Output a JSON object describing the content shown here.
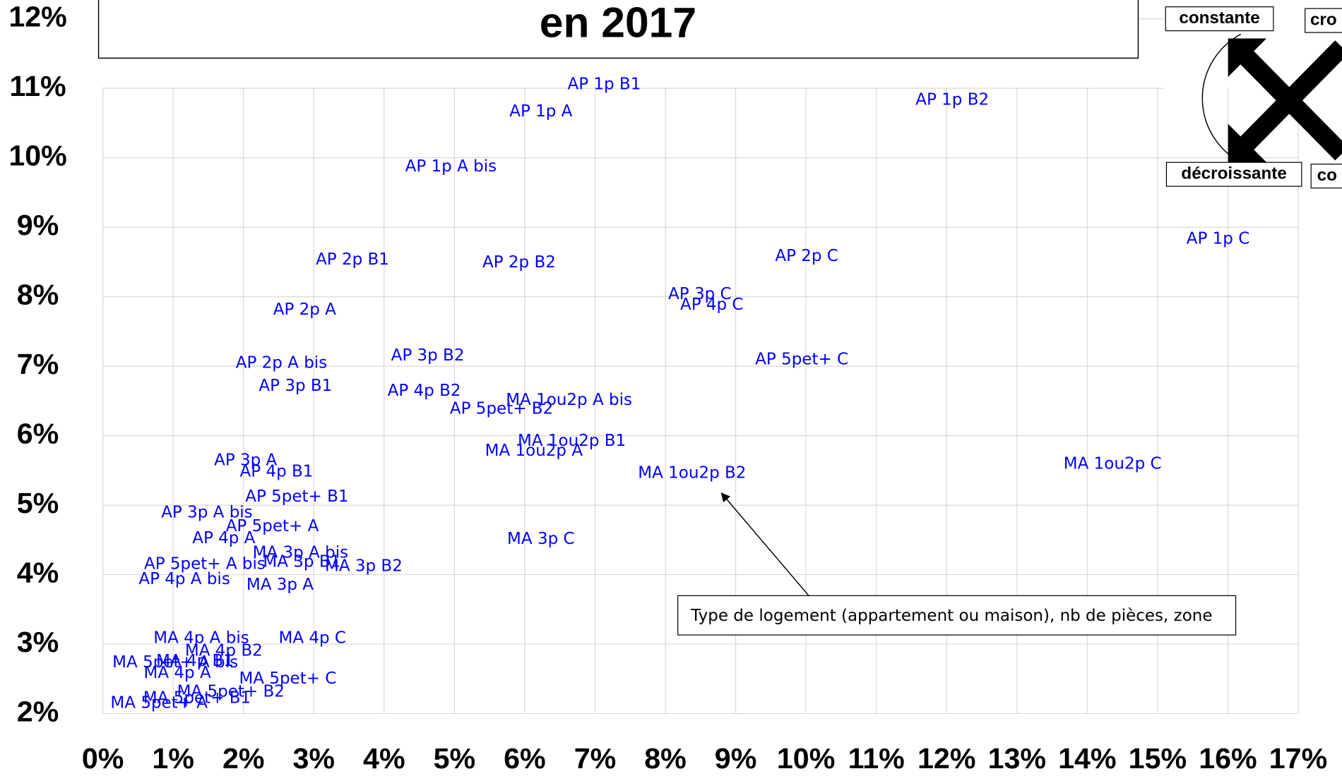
{
  "chart_data": {
    "type": "scatter",
    "title": "en 2017",
    "xlim": [
      0,
      17
    ],
    "ylim": [
      2,
      12
    ],
    "xticks": [
      {
        "value": 0,
        "label": "0%"
      },
      {
        "value": 1,
        "label": "1%"
      },
      {
        "value": 2,
        "label": "2%"
      },
      {
        "value": 3,
        "label": "3%"
      },
      {
        "value": 4,
        "label": "4%"
      },
      {
        "value": 5,
        "label": "5%"
      },
      {
        "value": 6,
        "label": "6%"
      },
      {
        "value": 7,
        "label": "7%"
      },
      {
        "value": 8,
        "label": "8%"
      },
      {
        "value": 9,
        "label": "9%"
      },
      {
        "value": 10,
        "label": "10%"
      },
      {
        "value": 11,
        "label": "11%"
      },
      {
        "value": 12,
        "label": "12%"
      },
      {
        "value": 13,
        "label": "13%"
      },
      {
        "value": 14,
        "label": "14%"
      },
      {
        "value": 15,
        "label": "15%"
      },
      {
        "value": 16,
        "label": "16%"
      },
      {
        "value": 17,
        "label": "17%"
      }
    ],
    "yticks": [
      {
        "value": 2,
        "label": "2%"
      },
      {
        "value": 3,
        "label": "3%"
      },
      {
        "value": 4,
        "label": "4%"
      },
      {
        "value": 5,
        "label": "5%"
      },
      {
        "value": 6,
        "label": "6%"
      },
      {
        "value": 7,
        "label": "7%"
      },
      {
        "value": 8,
        "label": "8%"
      },
      {
        "value": 9,
        "label": "9%"
      },
      {
        "value": 10,
        "label": "10%"
      },
      {
        "value": 11,
        "label": "11%"
      },
      {
        "value": 12,
        "label": "12%"
      }
    ],
    "grid": true,
    "series": [
      {
        "color": "#0000ff",
        "labels": [
          "AP 1p B1",
          "AP 1p A",
          "AP 1p B2",
          "AP 1p A bis",
          "AP 1p C",
          "AP 2p B1",
          "AP 2p B2",
          "AP 2p C",
          "AP 3p C",
          "AP 4p C",
          "AP 2p A",
          "AP 5pet+ C",
          "AP 3p B2",
          "AP 2p A bis",
          "AP 3p B1",
          "AP 4p B2",
          "MA 1ou2p A bis",
          "AP 5pet+ B2",
          "MA 1ou2p B1",
          "MA 1ou2p A",
          "MA 1ou2p B2",
          "MA 1ou2p C",
          "AP 3p A",
          "AP 4p B1",
          "AP 5pet+ B1",
          "AP 3p A bis",
          "AP 5pet+ A",
          "AP 4p A",
          "MA 3p C",
          "MA 3p A bis",
          "MA 3p B1",
          "MA 3p B2",
          "AP 5pet+ A bis",
          "AP 4p A bis",
          "MA 3p A",
          "MA 4p A bis",
          "MA 4p C",
          "MA 4p B2",
          "MA 4p B1",
          "MA 4p A",
          "MA 5pet+ C",
          "MA 5pet+ A bis",
          "MA 5pet+ B2",
          "MA 5pet+ B1",
          "MA 5pet+ A"
        ],
        "x": [
          7.13,
          6.23,
          12.08,
          4.95,
          15.86,
          3.55,
          5.92,
          10.01,
          8.49,
          8.66,
          2.87,
          9.94,
          4.62,
          2.54,
          2.74,
          4.57,
          6.63,
          5.67,
          6.67,
          6.13,
          8.38,
          14.36,
          2.03,
          2.47,
          2.76,
          1.48,
          2.41,
          1.72,
          6.23,
          2.81,
          2.83,
          3.71,
          1.45,
          1.16,
          2.52,
          1.4,
          2.98,
          1.72,
          1.31,
          1.06,
          2.63,
          1.03,
          1.82,
          1.34,
          0.8
        ],
        "values": [
          11.05,
          10.66,
          10.83,
          9.87,
          8.83,
          8.53,
          8.49,
          8.58,
          8.03,
          7.88,
          7.81,
          7.09,
          7.15,
          7.04,
          6.71,
          6.64,
          6.51,
          6.38,
          5.92,
          5.78,
          5.46,
          5.59,
          5.64,
          5.48,
          5.12,
          4.89,
          4.69,
          4.52,
          4.51,
          4.31,
          4.18,
          4.12,
          4.15,
          3.93,
          3.85,
          3.08,
          3.08,
          2.9,
          2.75,
          2.58,
          2.5,
          2.73,
          2.31,
          2.22,
          2.15
        ]
      }
    ],
    "annotation": "Type de logement (appartement ou maison), nb de pièces, zone",
    "key": {
      "labels": [
        "constante",
        "cro",
        "décroissante",
        "co"
      ]
    }
  }
}
